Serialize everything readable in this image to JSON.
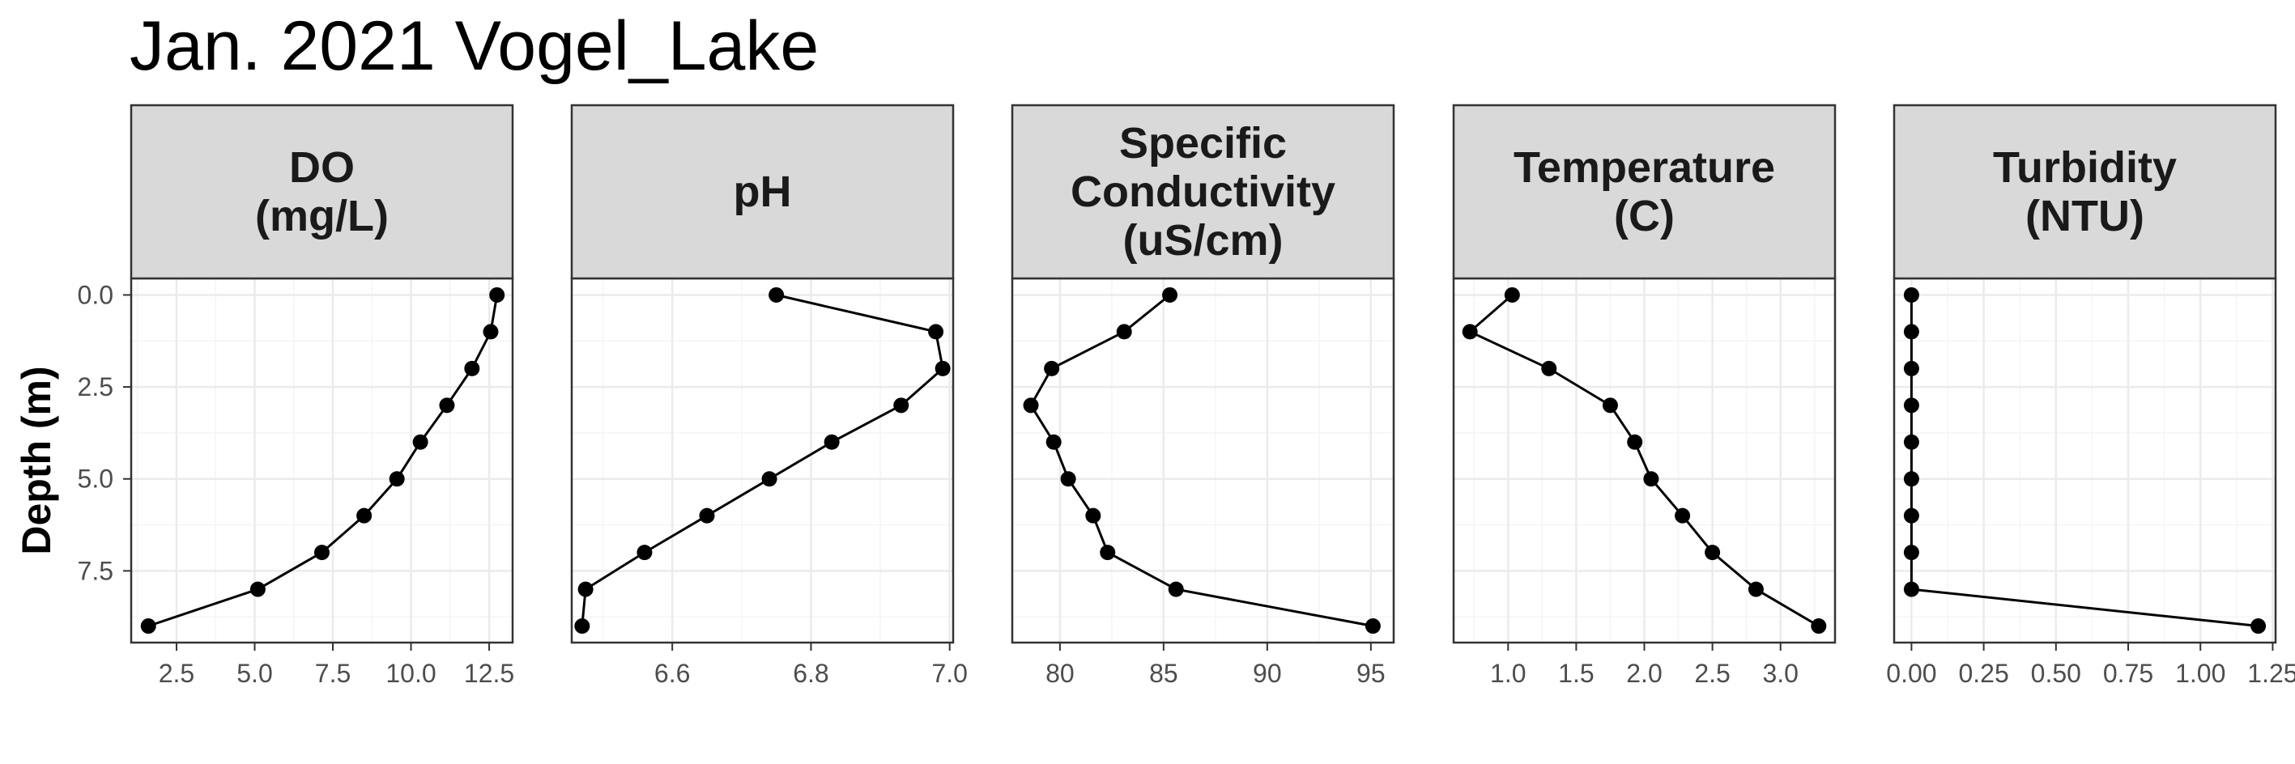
{
  "title": "Jan. 2021 Vogel_Lake",
  "chart_data": {
    "type": "line",
    "ylabel": "Depth (m)",
    "y_reversed": true,
    "shared_y": {
      "ylim": [
        -0.45,
        9.45
      ],
      "ticks": [
        0,
        2.5,
        5,
        7.5
      ],
      "tick_labels": [
        "0.0",
        "2.5",
        "5.0",
        "7.5"
      ]
    },
    "panels": [
      {
        "strip": [
          "DO",
          "(mg/L)"
        ],
        "xlim": [
          1.05,
          13.25
        ],
        "xticks": [
          2.5,
          5,
          7.5,
          10,
          12.5
        ],
        "xtick_labels": [
          "2.5",
          "5.0",
          "7.5",
          "10.0",
          "12.5"
        ],
        "points": [
          [
            12.75,
            0
          ],
          [
            12.55,
            1
          ],
          [
            11.95,
            2
          ],
          [
            11.15,
            3
          ],
          [
            10.3,
            4
          ],
          [
            9.55,
            5
          ],
          [
            8.5,
            6
          ],
          [
            7.15,
            7
          ],
          [
            5.1,
            8
          ],
          [
            1.6,
            9
          ]
        ]
      },
      {
        "strip": [
          "pH"
        ],
        "xlim": [
          6.455,
          7.005
        ],
        "xticks": [
          6.6,
          6.8,
          7.0
        ],
        "xtick_labels": [
          "6.6",
          "6.8",
          "7.0"
        ],
        "points": [
          [
            6.75,
            0
          ],
          [
            6.98,
            1
          ],
          [
            6.99,
            2
          ],
          [
            6.93,
            3
          ],
          [
            6.83,
            4
          ],
          [
            6.74,
            5
          ],
          [
            6.65,
            6
          ],
          [
            6.56,
            7
          ],
          [
            6.475,
            8
          ],
          [
            6.47,
            9
          ]
        ]
      },
      {
        "strip": [
          "Specific",
          "Conductivity",
          "(uS/cm)"
        ],
        "xlim": [
          77.7,
          96.1
        ],
        "xticks": [
          80,
          85,
          90,
          95
        ],
        "xtick_labels": [
          "80",
          "85",
          "90",
          "95"
        ],
        "points": [
          [
            85.3,
            0
          ],
          [
            83.1,
            1
          ],
          [
            79.6,
            2
          ],
          [
            78.6,
            3
          ],
          [
            79.7,
            4
          ],
          [
            80.4,
            5
          ],
          [
            81.6,
            6
          ],
          [
            82.3,
            7
          ],
          [
            85.6,
            8
          ],
          [
            95.1,
            9
          ]
        ]
      },
      {
        "strip": [
          "Temperature",
          "(C)"
        ],
        "xlim": [
          0.6,
          3.4
        ],
        "xticks": [
          1.0,
          1.5,
          2.0,
          2.5,
          3.0
        ],
        "xtick_labels": [
          "1.0",
          "1.5",
          "2.0",
          "2.5",
          "3.0"
        ],
        "points": [
          [
            1.03,
            0
          ],
          [
            0.72,
            1
          ],
          [
            1.3,
            2
          ],
          [
            1.75,
            3
          ],
          [
            1.93,
            4
          ],
          [
            2.05,
            5
          ],
          [
            2.28,
            6
          ],
          [
            2.5,
            7
          ],
          [
            2.82,
            8
          ],
          [
            3.28,
            9
          ]
        ]
      },
      {
        "strip": [
          "Turbidity",
          "(NTU)"
        ],
        "xlim": [
          -0.06,
          1.26
        ],
        "xticks": [
          0,
          0.25,
          0.5,
          0.75,
          1.0,
          1.25
        ],
        "xtick_labels": [
          "0.00",
          "0.25",
          "0.50",
          "0.75",
          "1.00",
          "1.25"
        ],
        "points": [
          [
            0,
            0
          ],
          [
            0,
            1
          ],
          [
            0,
            2
          ],
          [
            0,
            3
          ],
          [
            0,
            4
          ],
          [
            0,
            5
          ],
          [
            0,
            6
          ],
          [
            0,
            7
          ],
          [
            0,
            8
          ],
          [
            1.2,
            9
          ]
        ]
      }
    ],
    "colors": {
      "strip_fill": "#d9d9d9",
      "frame": "#333333",
      "grid_major": "#ebebeb",
      "grid_minor": "#f5f5f5",
      "line": "#000000",
      "point": "#000000",
      "tick_text": "#4d4d4d"
    }
  }
}
